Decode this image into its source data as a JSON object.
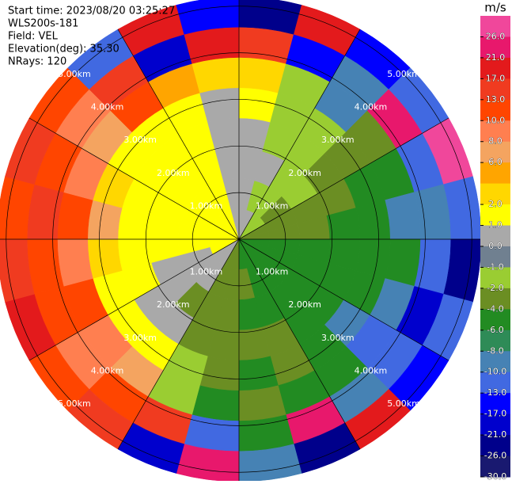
{
  "chart_data": {
    "type": "ppi",
    "header": [
      "Start time: 2023/08/20 03:25:27",
      "WLS200s-181",
      "Field: VEL",
      "Elevation(deg): 35.30",
      "NRays: 120"
    ],
    "rlim": [
      0,
      5.2
    ],
    "rings": [
      {
        "value": 1,
        "label": "1.00km"
      },
      {
        "value": 2,
        "label": "2.00km"
      },
      {
        "value": 3,
        "label": "3.00km"
      },
      {
        "value": 4,
        "label": "4.00km"
      },
      {
        "value": 5,
        "label": "5.00km"
      }
    ],
    "azimuth_edges": [
      0,
      15,
      30,
      45,
      60,
      75,
      90,
      105,
      120,
      135,
      150,
      165,
      180,
      195,
      210,
      225,
      240,
      255,
      270,
      285,
      300,
      315,
      330,
      345,
      360
    ],
    "range_edges": [
      0,
      0.65,
      1.3,
      1.95,
      2.6,
      3.25,
      3.9,
      4.55,
      5.2
    ],
    "field": [
      [
        0.5,
        0.5,
        -1.5,
        -1.5,
        -3,
        -3,
        -5,
        -5,
        -5,
        -5,
        -5,
        -5,
        -3,
        -3,
        0.5,
        0.5,
        1.5,
        1.5,
        1.5,
        1.5,
        1.5,
        1.5,
        1.5,
        0.5
      ],
      [
        0.5,
        -1.5,
        -1.5,
        -3,
        -3,
        -3,
        -5,
        -5,
        -5,
        -5,
        -5,
        -3,
        -3,
        -3,
        0.5,
        0.5,
        0.5,
        1.5,
        1.5,
        1.5,
        1.5,
        1.5,
        1.5,
        0.5
      ],
      [
        0.5,
        0.5,
        -1.5,
        -1.5,
        -3,
        -3,
        -5,
        -5,
        -5,
        -5,
        -5,
        -5,
        -3,
        -3,
        -3,
        0.5,
        0.5,
        1.5,
        1.5,
        1.5,
        1.5,
        1.5,
        1.5,
        0.5
      ],
      [
        0.5,
        -1.5,
        -1.5,
        -3,
        -3,
        -5,
        -5,
        -5,
        -5,
        -5,
        -3,
        -3,
        -3,
        -3,
        0.5,
        0.5,
        1.5,
        1.5,
        1.5,
        1.5,
        1.5,
        1.5,
        1.5,
        0.5
      ],
      [
        1.5,
        -1.5,
        -1.5,
        -3,
        -5,
        -5,
        -5,
        -5,
        -9,
        -5,
        -3,
        -5,
        -3,
        -1.5,
        1.5,
        1.5,
        1.5,
        3,
        7,
        3,
        1.5,
        1.5,
        1.5,
        0.5
      ],
      [
        3,
        -1.5,
        -9,
        -3,
        -5,
        -9,
        -5,
        -9,
        -11,
        -5,
        -5,
        -3,
        -5,
        -1.5,
        7,
        9,
        11,
        9,
        11,
        9,
        7,
        11,
        5,
        3
      ],
      [
        15,
        -15,
        -9,
        23,
        -11,
        -9,
        -11,
        -19,
        -11,
        -9,
        23,
        -5,
        -11,
        15,
        11,
        9,
        11,
        11,
        15,
        11,
        9,
        15,
        -19,
        19
      ],
      [
        -24,
        19,
        -15,
        -11,
        28,
        -11,
        -24,
        -11,
        -15,
        19,
        -24,
        -9,
        23,
        -19,
        15,
        11,
        19,
        15,
        11,
        15,
        11,
        -11,
        19,
        -15
      ]
    ],
    "colorbar": {
      "label": "m/s",
      "boundaries": [
        30,
        26,
        21,
        17,
        13,
        10,
        8,
        6,
        4,
        2,
        1,
        0,
        -1,
        -2,
        -4,
        -6,
        -8,
        -10,
        -13,
        -17,
        -21,
        -26,
        -30
      ],
      "colors": [
        "#f0479b",
        "#e8186c",
        "#e31a1c",
        "#f03b20",
        "#ff4500",
        "#ff7f50",
        "#f4a460",
        "#ffa500",
        "#ffd700",
        "#ffff00",
        "#a9a9a9",
        "#708090",
        "#9acd32",
        "#6b8e23",
        "#228b22",
        "#2e8b57",
        "#4682b4",
        "#4169e1",
        "#0000ff",
        "#0000cd",
        "#00008b",
        "#191970"
      ],
      "ticks": [
        {
          "value": 26,
          "label": "26.0"
        },
        {
          "value": 21,
          "label": "21.0"
        },
        {
          "value": 17,
          "label": "17.0"
        },
        {
          "value": 13,
          "label": "13.0"
        },
        {
          "value": 10,
          "label": "10.0"
        },
        {
          "value": 8,
          "label": "8.0"
        },
        {
          "value": 6,
          "label": "6.0"
        },
        {
          "value": 2,
          "label": "2.0"
        },
        {
          "value": 1,
          "label": "1.0"
        },
        {
          "value": 0,
          "label": "0.0"
        },
        {
          "value": -1,
          "label": "-1.0"
        },
        {
          "value": -2,
          "label": "-2.0"
        },
        {
          "value": -4,
          "label": "-4.0"
        },
        {
          "value": -6,
          "label": "-6.0"
        },
        {
          "value": -8,
          "label": "-8.0"
        },
        {
          "value": -10,
          "label": "-10.0"
        },
        {
          "value": -13,
          "label": "-13.0"
        },
        {
          "value": -17,
          "label": "-17.0"
        },
        {
          "value": -21,
          "label": "-21.0"
        },
        {
          "value": -26,
          "label": "-26.0"
        },
        {
          "value": -30,
          "label": "-30.0"
        }
      ]
    }
  }
}
